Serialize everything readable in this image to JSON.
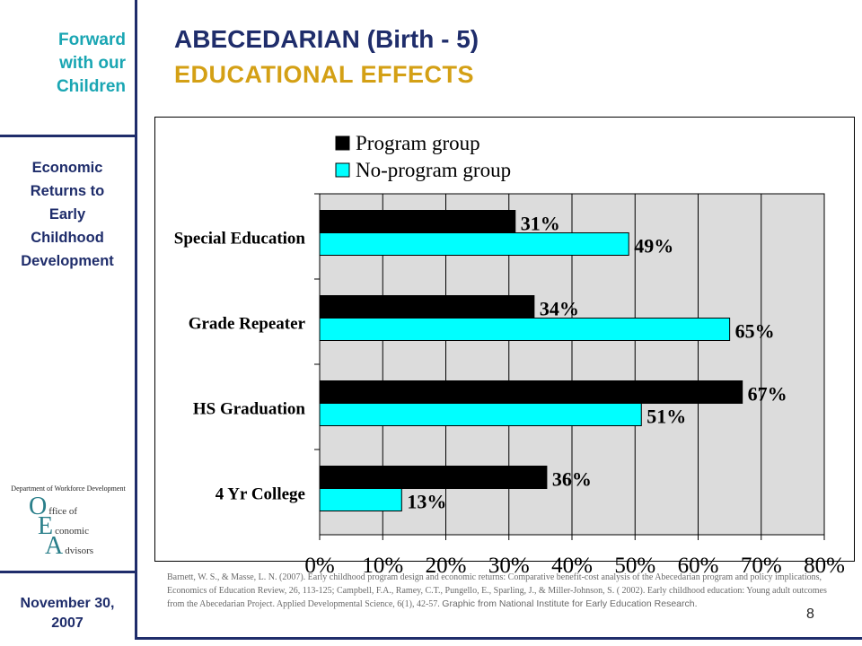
{
  "sidebar": {
    "tagline": [
      "Forward",
      "with our",
      "Children"
    ],
    "subtitle": [
      "Economic",
      "Returns to",
      "Early",
      "Childhood",
      "Development"
    ],
    "logo": {
      "dept": "Department of Workforce Development",
      "letters": [
        {
          "big": "O",
          "small": "ffice of"
        },
        {
          "big": "E",
          "small": "conomic"
        },
        {
          "big": "A",
          "small": "dvisors"
        }
      ]
    },
    "date": [
      "November 30,",
      "2007"
    ]
  },
  "header": {
    "title": "ABECEDARIAN (Birth - 5)",
    "subtitle": "EDUCATIONAL EFFECTS"
  },
  "chart_data": {
    "type": "bar",
    "orientation": "horizontal",
    "categories": [
      "Special Education",
      "Grade Repeater",
      "HS Graduation",
      "4 Yr College"
    ],
    "series": [
      {
        "name": "Program group",
        "values": [
          31,
          34,
          67,
          36
        ],
        "labels": [
          "31%",
          "34%",
          "67%",
          "36%"
        ],
        "color": "#000000"
      },
      {
        "name": "No-program group",
        "values": [
          49,
          65,
          51,
          13
        ],
        "labels": [
          "49%",
          "65%",
          "51%",
          "13%"
        ],
        "color": "#00ffff"
      }
    ],
    "xlim": [
      0,
      80
    ],
    "xticks": [
      "0%",
      "10%",
      "20%",
      "30%",
      "40%",
      "50%",
      "60%",
      "70%",
      "80%"
    ],
    "grid": true,
    "plot_background": "#dcdcdc",
    "legend_position": "top"
  },
  "citation": {
    "text": "Barnett, W. S., & Masse, L. N. (2007). Early childhood program design and economic returns: Comparative benefit-cost analysis of the Abecedarian program and policy implications, Economics of Education Review, 26, 113-125; Campbell, F.A., Ramey, C.T., Pungello, E., Sparling, J., & Miller-Johnson, S. ( 2002). Early childhood education: Young adult outcomes from the Abecedarian Project. Applied Developmental Science, 6(1), 42-57.",
    "source": "Graphic from National Institute for Early Education Research."
  },
  "page_number": "8"
}
